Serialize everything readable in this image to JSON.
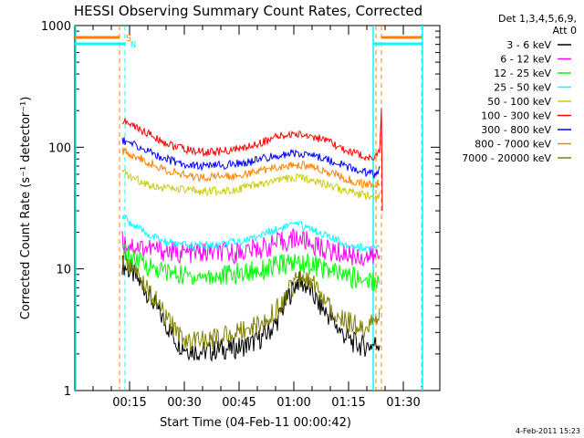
{
  "chart_data": {
    "type": "line",
    "title": "HESSI Observing Summary Count Rates, Corrected",
    "xlabel": "Start Time (04-Feb-11 00:00:42)",
    "ylabel": "Corrected Count Rate (s⁻¹ detector⁻¹)",
    "yscale": "log",
    "ylim": [
      1,
      1000
    ],
    "xlim_minutes": [
      0,
      100
    ],
    "x_ticks": [
      "00:15",
      "00:30",
      "00:45",
      "01:00",
      "01:15",
      "01:30"
    ],
    "x_tick_minutes": [
      15,
      30,
      45,
      60,
      75,
      90
    ],
    "y_ticks": [
      "1",
      "10",
      "100",
      "1000"
    ],
    "y_tick_values": [
      1,
      10,
      100,
      1000
    ],
    "legend_header": [
      "Det 1,3,4,5,6,9,",
      "Att 0"
    ],
    "legend_position": "right",
    "timestamp": "4-Feb-2011 15:23",
    "markers": [
      {
        "label": "S",
        "color": "#ff8000"
      },
      {
        "label": "N",
        "color": "#00ffff"
      }
    ],
    "x": [
      13,
      16,
      19,
      22,
      25,
      28,
      31,
      34,
      37,
      40,
      43,
      46,
      49,
      52,
      55,
      58,
      61,
      64,
      67,
      70,
      73,
      76,
      79,
      82,
      83.5
    ],
    "series": [
      {
        "name": "3 - 6 keV",
        "color": "#000000",
        "values": [
          11,
          9,
          7,
          5,
          3.5,
          2.5,
          2.2,
          2.1,
          2.1,
          2.2,
          2.2,
          2.3,
          2.5,
          2.8,
          3.5,
          5.5,
          8,
          7,
          5,
          4,
          3,
          2.5,
          2.3,
          2.4,
          2.5
        ]
      },
      {
        "name": "6 - 12 keV",
        "color": "#ff00ff",
        "values": [
          17,
          15.5,
          15,
          14.5,
          14,
          13.5,
          13.5,
          13.5,
          13.5,
          13.5,
          13.5,
          14,
          14.5,
          15,
          16,
          17,
          18,
          16.5,
          15,
          14,
          13.5,
          13,
          12.5,
          12.5,
          13
        ]
      },
      {
        "name": "12 - 25 keV",
        "color": "#00ff00",
        "values": [
          14,
          12,
          11,
          10,
          9.5,
          9,
          8.8,
          8.7,
          8.7,
          8.8,
          9,
          9.3,
          9.7,
          10,
          10.5,
          11,
          11.3,
          11,
          10.5,
          9.5,
          9,
          8.5,
          8.2,
          8,
          8
        ]
      },
      {
        "name": "25 - 50 keV",
        "color": "#00ffff",
        "values": [
          27,
          23,
          20,
          18,
          16.5,
          16,
          15.5,
          15.5,
          15.5,
          16,
          16.5,
          17,
          18,
          19.5,
          21,
          22.5,
          23,
          22,
          20,
          18,
          16.5,
          15.5,
          15,
          14.5,
          15
        ]
      },
      {
        "name": "50 - 100 keV",
        "color": "#cccc00",
        "values": [
          62,
          56,
          51,
          48,
          46,
          45,
          44,
          43.5,
          43.5,
          44,
          45,
          46,
          48,
          50,
          52.5,
          55,
          56,
          55,
          52,
          48,
          45,
          42,
          40.5,
          39.5,
          41
        ]
      },
      {
        "name": "100 - 300 keV",
        "color": "#ff0000",
        "values": [
          165,
          150,
          135,
          120,
          108,
          100,
          95,
          92,
          91,
          92,
          95,
          98,
          104,
          112,
          120,
          126,
          128,
          125,
          118,
          108,
          98,
          90,
          85,
          82,
          90
        ]
      },
      {
        "name": "300 - 800 keV",
        "color": "#0000ff",
        "values": [
          115,
          105,
          96,
          87,
          80,
          75,
          72,
          70,
          70,
          71,
          72,
          74,
          77,
          81,
          85,
          88,
          89,
          87,
          83,
          78,
          72,
          67,
          63,
          60,
          65
        ]
      },
      {
        "name": "800 - 7000 keV",
        "color": "#ff8000",
        "values": [
          94,
          86,
          78,
          71,
          65,
          61,
          58,
          57,
          57,
          57.5,
          58,
          60,
          62,
          65,
          68,
          71,
          72,
          70,
          66,
          62,
          57,
          53,
          50,
          49,
          52
        ]
      },
      {
        "name": "7000 - 20000 keV",
        "color": "#808000",
        "values": [
          12,
          10,
          7.5,
          5.5,
          4,
          3,
          2.6,
          2.5,
          2.6,
          2.8,
          3,
          3.2,
          3.4,
          3.8,
          4.5,
          6,
          8.5,
          8,
          6.5,
          5,
          4,
          3.5,
          3.3,
          3.5,
          4
        ]
      }
    ]
  }
}
